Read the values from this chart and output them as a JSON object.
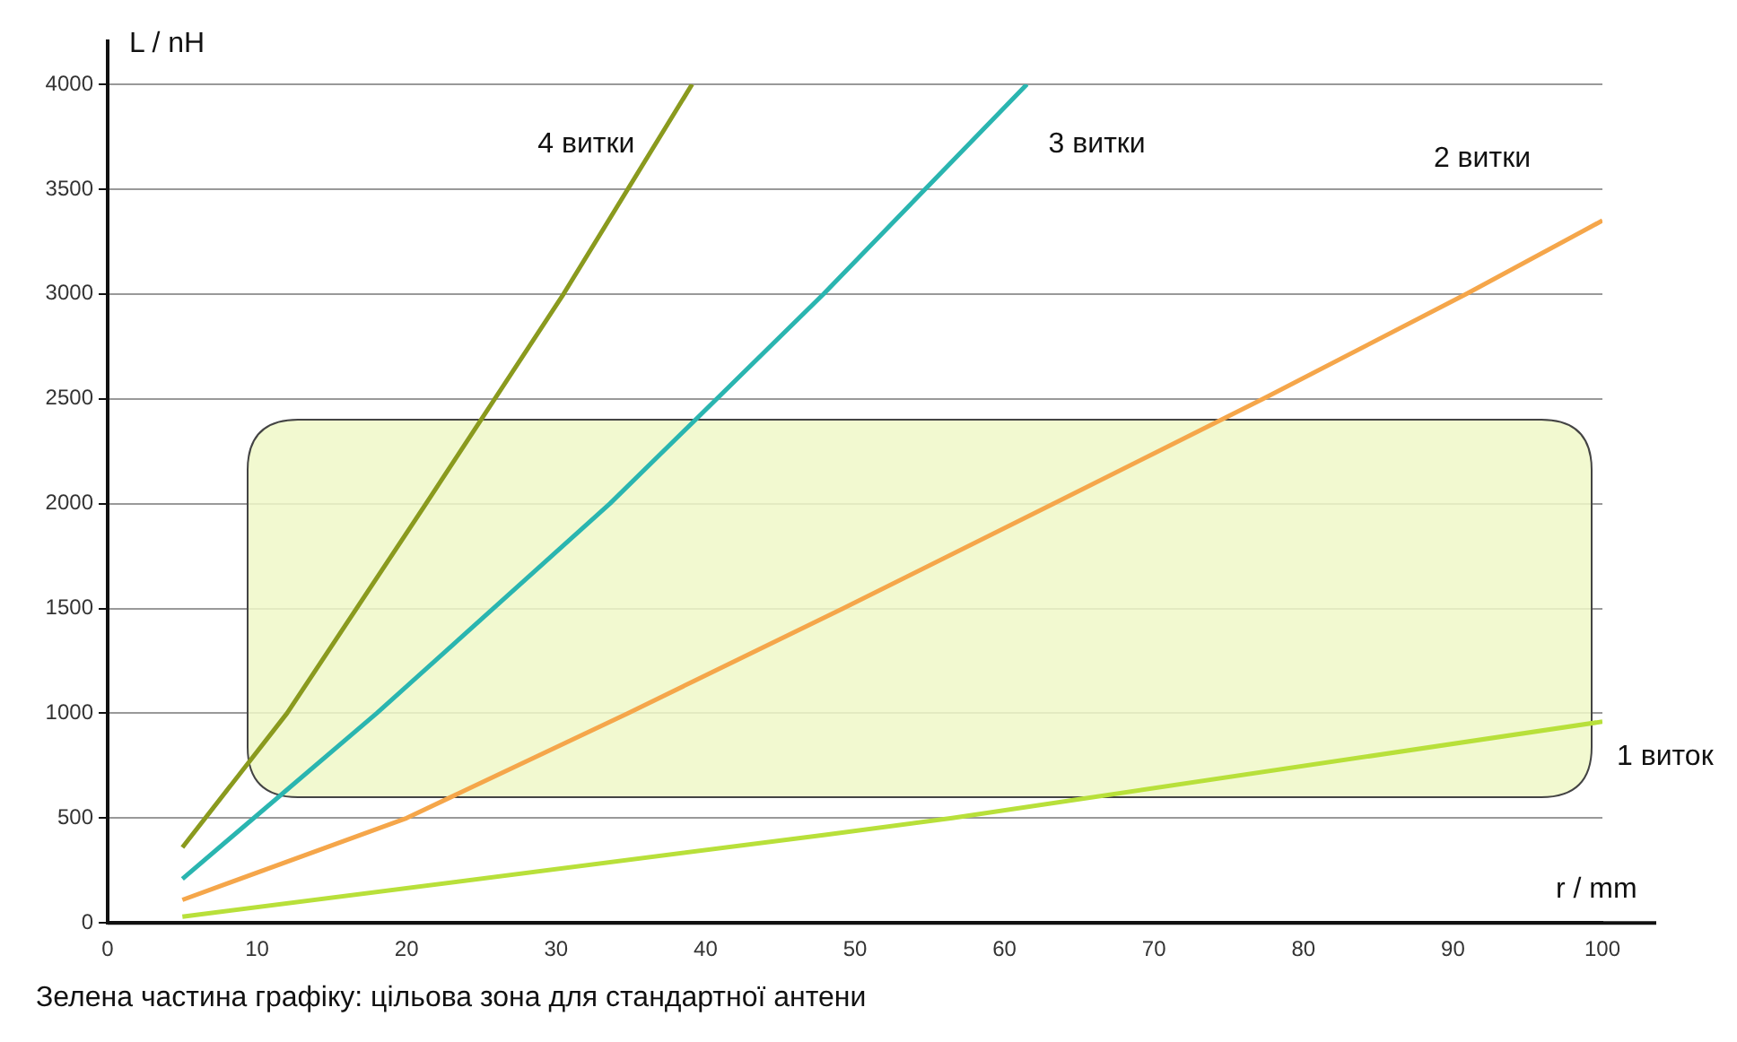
{
  "chart_data": {
    "type": "line",
    "xlabel": "r / mm",
    "ylabel": "L / nH",
    "xlim": [
      0,
      100
    ],
    "xticks": [
      0,
      10,
      20,
      30,
      40,
      50,
      60,
      70,
      80,
      90,
      100
    ],
    "ylim": [
      0,
      4000
    ],
    "yticks": [
      0,
      500,
      1000,
      1500,
      2000,
      2500,
      3000,
      3500,
      4000
    ],
    "grid": "y",
    "legend": false,
    "marker": "none",
    "line_style": "solid",
    "series": [
      {
        "name": "4 витки",
        "color": "#8a9a1e",
        "x": [
          5,
          12,
          21.3,
          30.5,
          39.1
        ],
        "values": [
          360,
          1000,
          2000,
          3000,
          4000
        ]
      },
      {
        "name": "3 витки",
        "color": "#2ab5b0",
        "x": [
          5,
          18,
          33.6,
          47.9,
          61.5
        ],
        "values": [
          210,
          1000,
          2000,
          3000,
          4000
        ]
      },
      {
        "name": "2 витки",
        "color": "#f5a64a",
        "x": [
          5,
          20,
          34.8,
          49.2,
          63.3,
          77.3,
          90.9,
          100
        ],
        "values": [
          110,
          500,
          1000,
          1500,
          2000,
          2500,
          3000,
          3350
        ]
      },
      {
        "name": "1 виток",
        "color": "#b8e03a",
        "x": [
          5,
          48,
          56.5,
          100
        ],
        "values": [
          30,
          420,
          500,
          960
        ]
      }
    ],
    "bands": [
      {
        "axis": "y",
        "from": 600,
        "to": 2400,
        "color": "#f0f8c8"
      }
    ],
    "annotations": [
      "Зелена частина графіку: цільова зона для стандартної антени"
    ]
  }
}
